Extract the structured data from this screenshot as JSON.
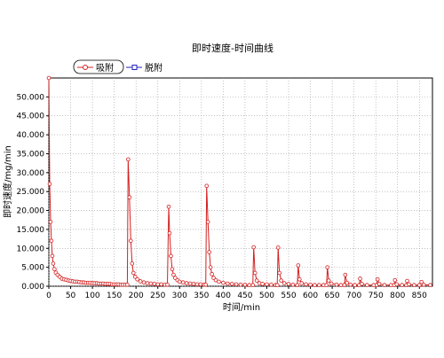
{
  "chart_data": {
    "type": "line",
    "title": "即时速度-时间曲线",
    "xlabel": "时间/min",
    "ylabel": "即时速度/mg/min",
    "xlim": [
      0,
      880
    ],
    "ylim": [
      0,
      55
    ],
    "x_ticks": [
      "0",
      "50",
      "100",
      "150",
      "200",
      "250",
      "300",
      "350",
      "400",
      "450",
      "500",
      "550",
      "600",
      "650",
      "700",
      "750",
      "800",
      "850"
    ],
    "y_ticks": [
      "0.000",
      "5.000",
      "10.000",
      "15.000",
      "20.000",
      "25.000",
      "30.000",
      "35.000",
      "40.000",
      "45.000",
      "50.000"
    ],
    "grid": true,
    "legend_placement": "top-left",
    "series": [
      {
        "name": "吸附",
        "color": "#d42020",
        "marker": "circle",
        "points": [
          [
            0,
            55.0
          ],
          [
            2,
            27.0
          ],
          [
            4,
            17.0
          ],
          [
            6,
            12.0
          ],
          [
            8,
            8.0
          ],
          [
            10,
            6.0
          ],
          [
            13,
            4.5
          ],
          [
            16,
            3.6
          ],
          [
            20,
            3.0
          ],
          [
            25,
            2.5
          ],
          [
            30,
            2.0
          ],
          [
            35,
            1.8
          ],
          [
            40,
            1.7
          ],
          [
            45,
            1.5
          ],
          [
            50,
            1.4
          ],
          [
            55,
            1.3
          ],
          [
            60,
            1.2
          ],
          [
            65,
            1.2
          ],
          [
            70,
            1.1
          ],
          [
            75,
            1.0
          ],
          [
            80,
            1.0
          ],
          [
            85,
            0.9
          ],
          [
            90,
            0.9
          ],
          [
            95,
            0.9
          ],
          [
            100,
            0.8
          ],
          [
            105,
            0.8
          ],
          [
            110,
            0.8
          ],
          [
            115,
            0.7
          ],
          [
            120,
            0.7
          ],
          [
            125,
            0.7
          ],
          [
            130,
            0.6
          ],
          [
            135,
            0.6
          ],
          [
            140,
            0.6
          ],
          [
            145,
            0.5
          ],
          [
            150,
            0.5
          ],
          [
            155,
            0.5
          ],
          [
            160,
            0.5
          ],
          [
            165,
            0.4
          ],
          [
            170,
            0.4
          ],
          [
            175,
            0.4
          ],
          [
            180,
            0.4
          ],
          [
            182,
            33.5
          ],
          [
            185,
            23.5
          ],
          [
            188,
            12.0
          ],
          [
            191,
            6.0
          ],
          [
            194,
            3.5
          ],
          [
            198,
            2.5
          ],
          [
            203,
            1.8
          ],
          [
            210,
            1.3
          ],
          [
            218,
            1.0
          ],
          [
            226,
            0.8
          ],
          [
            234,
            0.7
          ],
          [
            242,
            0.6
          ],
          [
            250,
            0.5
          ],
          [
            258,
            0.5
          ],
          [
            266,
            0.4
          ],
          [
            272,
            0.4
          ],
          [
            275,
            21.0
          ],
          [
            277,
            14.0
          ],
          [
            280,
            8.0
          ],
          [
            283,
            4.5
          ],
          [
            286,
            3.0
          ],
          [
            290,
            2.2
          ],
          [
            295,
            1.6
          ],
          [
            300,
            1.2
          ],
          [
            308,
            1.0
          ],
          [
            316,
            0.8
          ],
          [
            324,
            0.7
          ],
          [
            332,
            0.6
          ],
          [
            340,
            0.5
          ],
          [
            348,
            0.5
          ],
          [
            356,
            0.4
          ],
          [
            360,
            0.4
          ],
          [
            362,
            26.5
          ],
          [
            365,
            17.0
          ],
          [
            368,
            9.0
          ],
          [
            371,
            5.0
          ],
          [
            374,
            3.2
          ],
          [
            378,
            2.2
          ],
          [
            383,
            1.6
          ],
          [
            390,
            1.2
          ],
          [
            400,
            0.9
          ],
          [
            410,
            0.7
          ],
          [
            420,
            0.6
          ],
          [
            430,
            0.5
          ],
          [
            440,
            0.4
          ],
          [
            450,
            0.4
          ],
          [
            460,
            0.3
          ],
          [
            468,
            0.3
          ],
          [
            470,
            10.3
          ],
          [
            473,
            3.5
          ],
          [
            477,
            1.5
          ],
          [
            483,
            0.8
          ],
          [
            490,
            0.6
          ],
          [
            500,
            0.5
          ],
          [
            510,
            0.4
          ],
          [
            520,
            0.3
          ],
          [
            524,
            0.3
          ],
          [
            526,
            10.2
          ],
          [
            529,
            3.5
          ],
          [
            533,
            1.5
          ],
          [
            540,
            0.8
          ],
          [
            550,
            0.6
          ],
          [
            560,
            0.4
          ],
          [
            570,
            0.3
          ],
          [
            572,
            5.5
          ],
          [
            575,
            1.8
          ],
          [
            580,
            0.8
          ],
          [
            590,
            0.5
          ],
          [
            600,
            0.4
          ],
          [
            610,
            0.3
          ],
          [
            620,
            0.3
          ],
          [
            630,
            0.3
          ],
          [
            637,
            0.3
          ],
          [
            639,
            5.0
          ],
          [
            642,
            1.5
          ],
          [
            648,
            0.7
          ],
          [
            660,
            0.4
          ],
          [
            670,
            0.3
          ],
          [
            678,
            0.3
          ],
          [
            680,
            3.0
          ],
          [
            684,
            0.9
          ],
          [
            692,
            0.4
          ],
          [
            702,
            0.3
          ],
          [
            712,
            0.3
          ],
          [
            714,
            2.0
          ],
          [
            718,
            0.6
          ],
          [
            730,
            0.3
          ],
          [
            745,
            0.3
          ],
          [
            752,
            0.3
          ],
          [
            754,
            1.8
          ],
          [
            758,
            0.6
          ],
          [
            770,
            0.3
          ],
          [
            785,
            0.3
          ],
          [
            792,
            0.3
          ],
          [
            794,
            1.6
          ],
          [
            798,
            0.5
          ],
          [
            810,
            0.3
          ],
          [
            820,
            0.3
          ],
          [
            822,
            1.4
          ],
          [
            826,
            0.5
          ],
          [
            838,
            0.3
          ],
          [
            850,
            0.3
          ],
          [
            855,
            1.1
          ],
          [
            860,
            0.4
          ],
          [
            875,
            0.3
          ]
        ]
      },
      {
        "name": "脱附",
        "color": "#2020c0",
        "marker": "square",
        "points": []
      }
    ]
  }
}
